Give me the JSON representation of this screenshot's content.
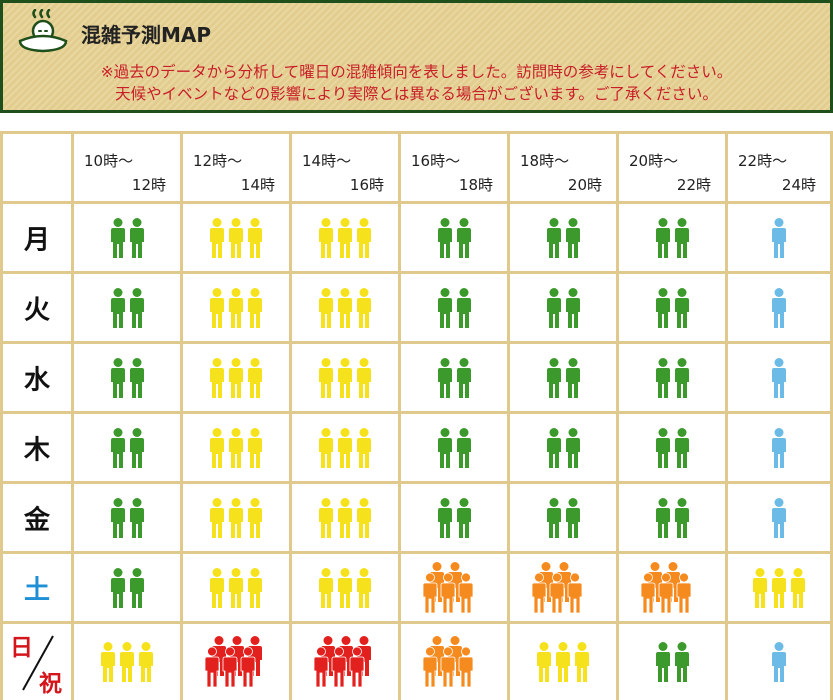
{
  "header": {
    "title": "混雑予測MAP",
    "icon": "onsen-person-icon",
    "note_line1": "※過去のデータから分析して曜日の混雑傾向を表しました。訪問時の参考にしてください。",
    "note_line2": "天候やイベントなどの影響により実際とは異なる場合がございます。ご了承ください。"
  },
  "time_slots": [
    {
      "from": "10時〜",
      "to": "12時"
    },
    {
      "from": "12時〜",
      "to": "14時"
    },
    {
      "from": "14時〜",
      "to": "16時"
    },
    {
      "from": "16時〜",
      "to": "18時"
    },
    {
      "from": "18時〜",
      "to": "20時"
    },
    {
      "from": "20時〜",
      "to": "22時"
    },
    {
      "from": "22時〜",
      "to": "24時"
    }
  ],
  "days": [
    {
      "label": "月",
      "color": "#111111",
      "levels": [
        "green",
        "yellow",
        "yellow",
        "green",
        "green",
        "green",
        "blue"
      ]
    },
    {
      "label": "火",
      "color": "#111111",
      "levels": [
        "green",
        "yellow",
        "yellow",
        "green",
        "green",
        "green",
        "blue"
      ]
    },
    {
      "label": "水",
      "color": "#111111",
      "levels": [
        "green",
        "yellow",
        "yellow",
        "green",
        "green",
        "green",
        "blue"
      ]
    },
    {
      "label": "木",
      "color": "#111111",
      "levels": [
        "green",
        "yellow",
        "yellow",
        "green",
        "green",
        "green",
        "blue"
      ]
    },
    {
      "label": "金",
      "color": "#111111",
      "levels": [
        "green",
        "yellow",
        "yellow",
        "green",
        "green",
        "green",
        "blue"
      ]
    },
    {
      "label": "土",
      "color": "#1f8fd6",
      "levels": [
        "green",
        "yellow",
        "yellow",
        "orange",
        "orange",
        "orange",
        "yellow"
      ]
    },
    {
      "label_top": "日",
      "label_bottom": "祝",
      "color": "#d4161c",
      "levels": [
        "yellow",
        "red",
        "red",
        "orange",
        "yellow",
        "green",
        "blue"
      ]
    }
  ],
  "crowd_levels": {
    "blue": {
      "people": 1,
      "color": "#6bbbe6",
      "icon": "single-person-icon"
    },
    "green": {
      "people": 2,
      "color": "#3c9a2c",
      "icon": "two-people-icon"
    },
    "yellow": {
      "people": 3,
      "color": "#f6e21c",
      "icon": "three-people-icon"
    },
    "orange": {
      "people": 5,
      "color": "#f58a1e",
      "icon": "group-people-icon"
    },
    "red": {
      "people": 6,
      "color": "#e2201e",
      "icon": "crowd-people-icon"
    }
  }
}
